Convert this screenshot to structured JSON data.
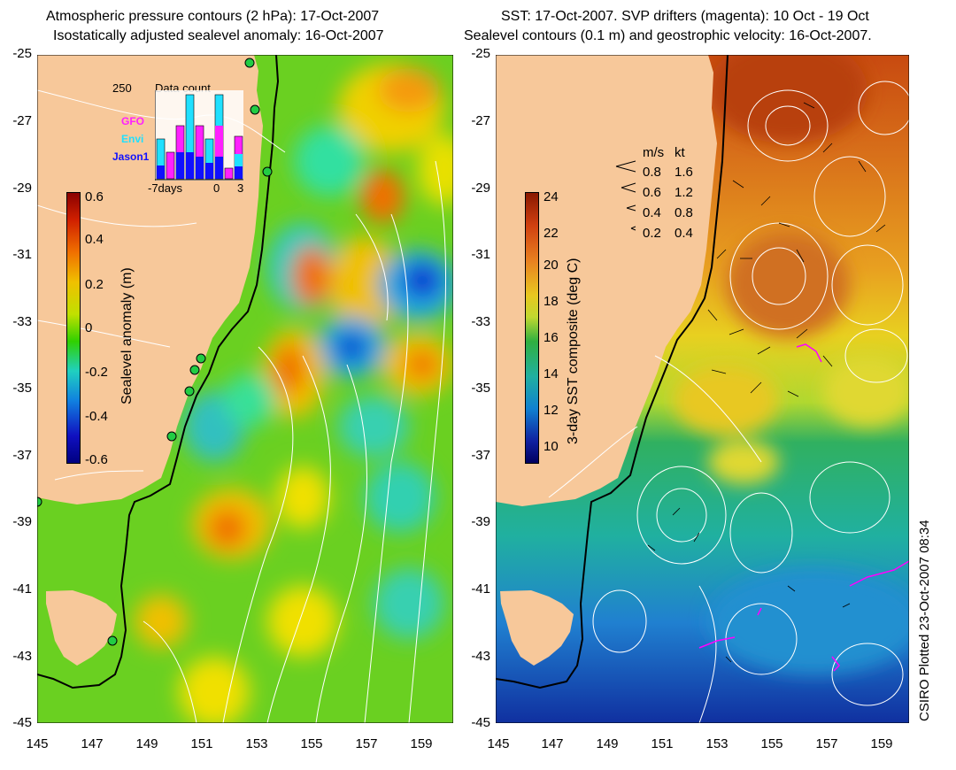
{
  "left": {
    "title_line1": "Atmospheric pressure contours (2 hPa): 17-Oct-2007",
    "title_line2": "Isostatically adjusted sealevel anomaly: 16-Oct-2007",
    "colorbar_label": "Sealevel anomaly (m)",
    "colorbar_ticks": [
      "0.6",
      "0.4",
      "0.2",
      "0",
      "-0.2",
      "-0.4",
      "-0.6"
    ],
    "inset": {
      "max_label": "250",
      "title": "Data count",
      "legend": [
        {
          "name": "GFO",
          "color": "#ff20ff"
        },
        {
          "name": "Envi",
          "color": "#20e0ff"
        },
        {
          "name": "Jason1",
          "color": "#1010ff"
        }
      ],
      "x_ticks": [
        "-7days",
        "0",
        "3"
      ]
    }
  },
  "right": {
    "title_line1": "SST: 17-Oct-2007. SVP drifters (magenta): 10 Oct - 19 Oct",
    "title_line2": "Sealevel contours (0.1 m) and geostrophic velocity: 16-Oct-2007.",
    "colorbar_label": "3-day SST composite (deg C)",
    "colorbar_ticks": [
      "24",
      "22",
      "20",
      "18",
      "16",
      "14",
      "12",
      "10"
    ],
    "velocity_legend": {
      "header_ms": "m/s",
      "header_kt": "kt",
      "rows": [
        {
          "ms": "0.8",
          "kt": "1.6"
        },
        {
          "ms": "0.6",
          "kt": "1.2"
        },
        {
          "ms": "0.4",
          "kt": "0.8"
        },
        {
          "ms": "0.2",
          "kt": "0.4"
        }
      ]
    }
  },
  "y_ticks": [
    "-25",
    "-27",
    "-29",
    "-31",
    "-33",
    "-35",
    "-37",
    "-39",
    "-41",
    "-43",
    "-45"
  ],
  "x_ticks": [
    "145",
    "147",
    "149",
    "151",
    "153",
    "155",
    "157",
    "159"
  ],
  "credit": "CSIRO Plotted 23-Oct-2007 08:34",
  "colors": {
    "land": "#f7c89a",
    "coast_contour": "#000000",
    "contour": "#ffffff",
    "drifter": "#ff00ff"
  }
}
